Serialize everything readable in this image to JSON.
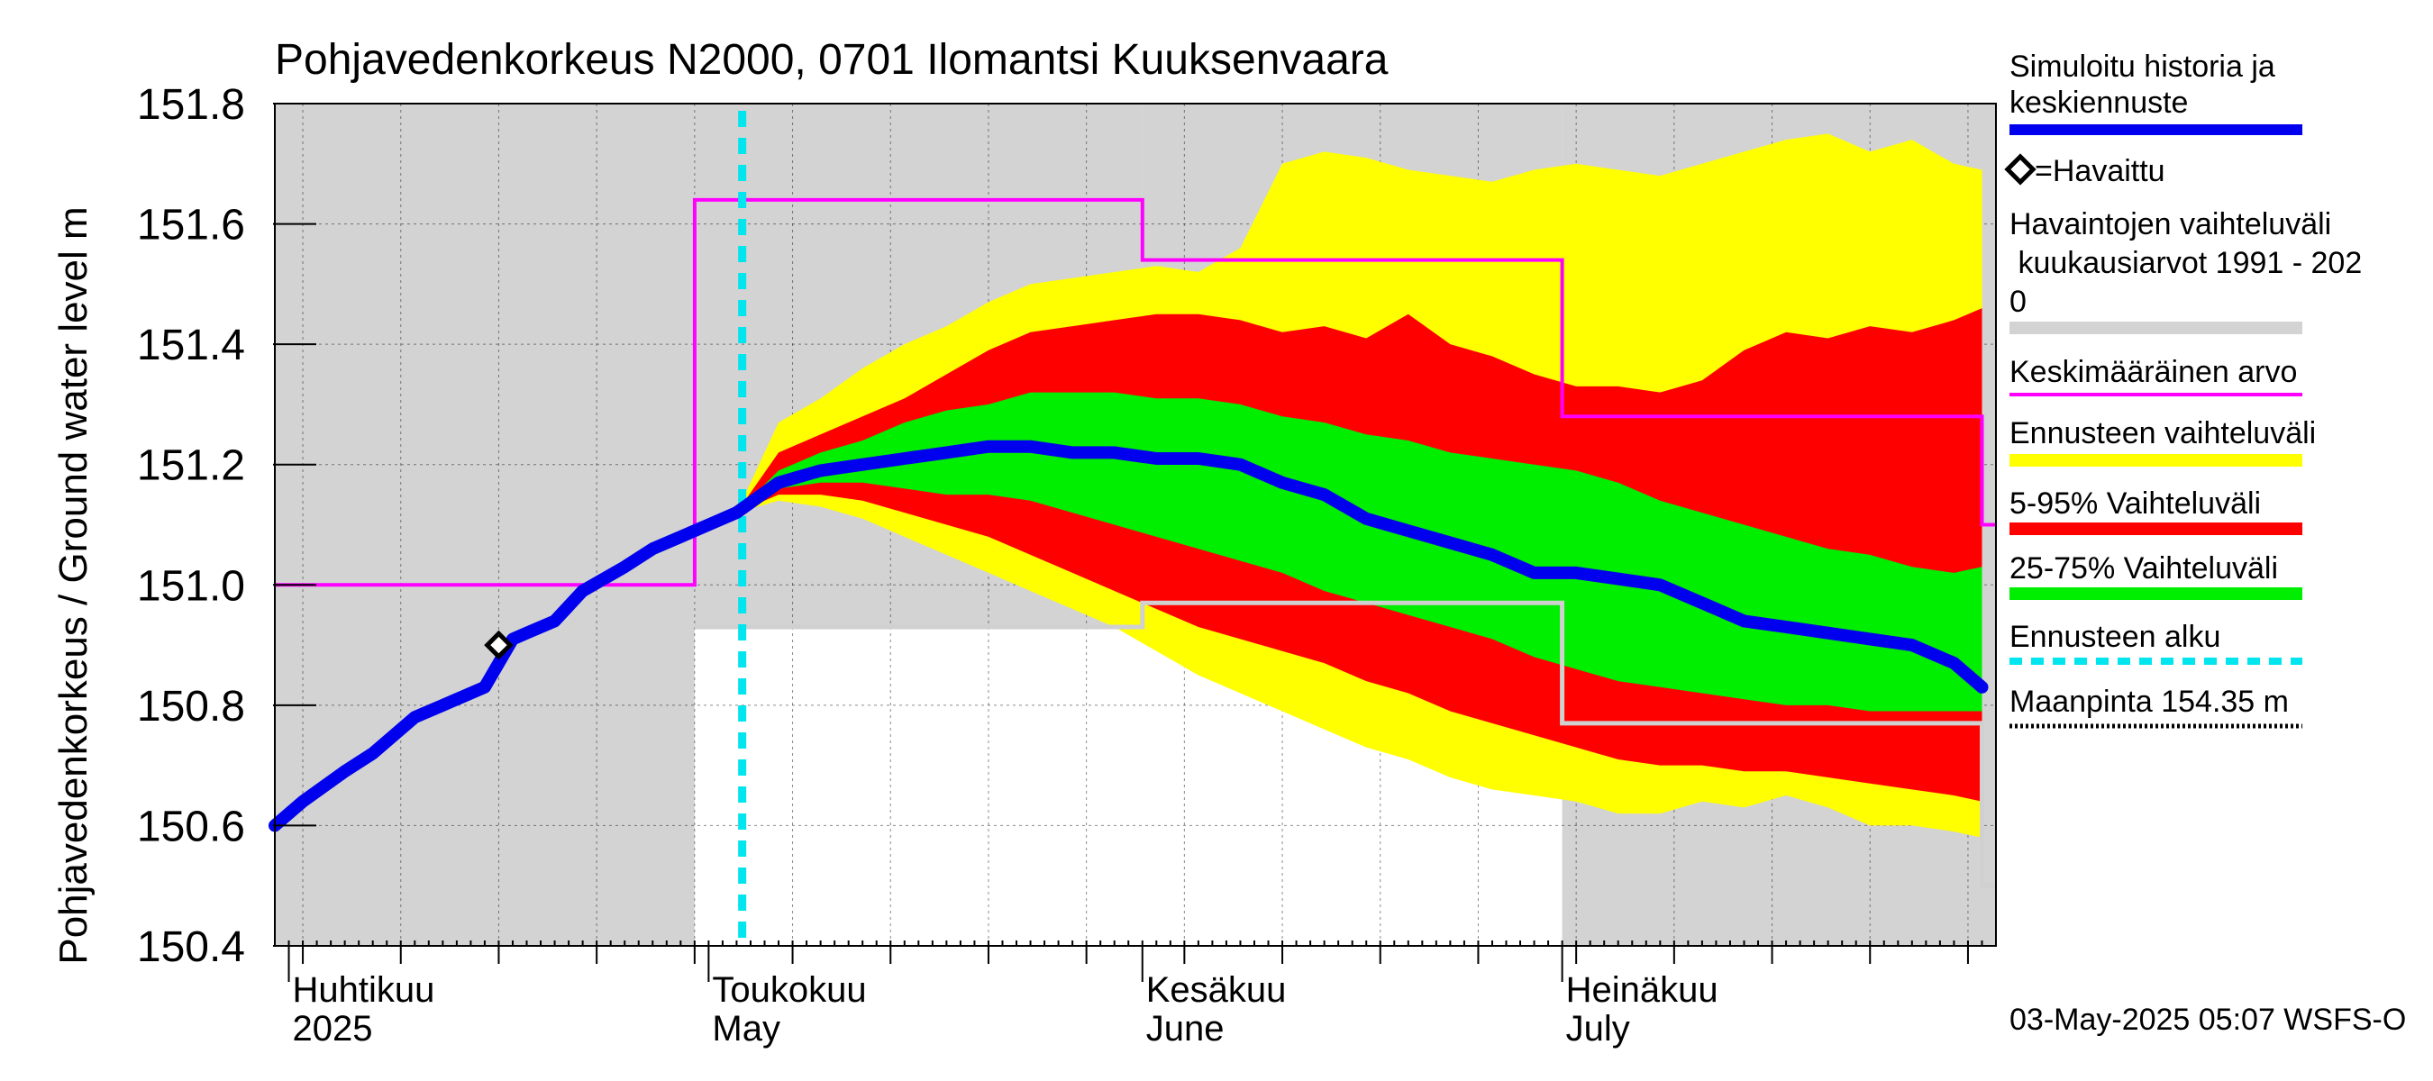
{
  "chart_data": {
    "type": "area",
    "title": "Pohjavedenkorkeus N2000, 0701 Ilomantsi Kuuksenvaara",
    "ylabel": "Pohjavedenkorkeus / Ground water level   m",
    "ylim": [
      150.4,
      151.8
    ],
    "y_ticks": [
      {
        "value": 150.4,
        "label": "150.4"
      },
      {
        "value": 150.6,
        "label": "150.6"
      },
      {
        "value": 150.8,
        "label": "150.8"
      },
      {
        "value": 151.0,
        "label": "151.0"
      },
      {
        "value": 151.2,
        "label": "151.2"
      },
      {
        "value": 151.4,
        "label": "151.4"
      },
      {
        "value": 151.6,
        "label": "151.6"
      },
      {
        "value": 151.8,
        "label": "151.8"
      }
    ],
    "x_range": [
      "2025-03-31",
      "2025-07-31"
    ],
    "month_labels": [
      {
        "date": "2025-04-01",
        "fi": "Huhtikuu",
        "en": "2025"
      },
      {
        "date": "2025-05-01",
        "fi": "Toukokuu",
        "en": "May"
      },
      {
        "date": "2025-06-01",
        "fi": "Kesäkuu",
        "en": "June"
      },
      {
        "date": "2025-07-01",
        "fi": "Heinäkuu",
        "en": "July"
      }
    ],
    "forecast_start": "2025-05-03",
    "timestamp": "03-May-2025 05:07 WSFS-O",
    "colors": {
      "observed_range": "#d3d3d3",
      "forecast_range": "#ffff00",
      "band_5_95": "#ff0000",
      "band_25_75": "#00ee00",
      "simulated": "#0000ee",
      "mean": "#ff00ff",
      "forecast_start": "#00e5ee",
      "ground_surface": "#000000",
      "observation_marker": "#000000"
    },
    "legend": {
      "simulated": [
        "Simuloitu historia ja",
        "keskiennuste"
      ],
      "observed": "=Havaittu",
      "observed_range": [
        "Havaintojen vaihteluväli",
        " kuukausiarvot 1991 - 202",
        "0"
      ],
      "mean": "Keskimääräinen arvo",
      "forecast_range": "Ennusteen vaihteluväli",
      "band_5_95": "5-95% Vaihteluväli",
      "band_25_75": "25-75% Vaihteluväli",
      "forecast_start": "Ennusteen alku",
      "ground_surface": "Maanpinta 154.35 m"
    },
    "observed_range_monthly": [
      {
        "from": "2025-03-31",
        "to": "2025-04-29",
        "low": 150.4,
        "high": 151.8
      },
      {
        "from": "2025-04-30",
        "to": "2025-05-31",
        "low": 150.93,
        "high": 151.8
      },
      {
        "from": "2025-06-01",
        "to": "2025-06-30",
        "low": 150.96,
        "high": 151.8
      },
      {
        "from": "2025-07-01",
        "to": "2025-07-31",
        "low": 150.4,
        "high": 151.8
      }
    ],
    "mean_steps": [
      {
        "from": "2025-03-31",
        "to": "2025-04-29",
        "value": 151.0
      },
      {
        "from": "2025-04-30",
        "to": "2025-05-31",
        "value": 151.64
      },
      {
        "from": "2025-06-01",
        "to": "2025-06-30",
        "value": 151.54
      },
      {
        "from": "2025-07-01",
        "to": "2025-07-30",
        "value": 151.28
      },
      {
        "from": "2025-07-31",
        "to": "2025-07-31",
        "value": 151.1
      }
    ],
    "low_steps": [
      {
        "from": "2025-04-30",
        "to": "2025-05-31",
        "value": 150.93
      },
      {
        "from": "2025-06-01",
        "to": "2025-06-30",
        "value": 150.97
      },
      {
        "from": "2025-07-01",
        "to": "2025-07-30",
        "value": 150.77
      },
      {
        "from": "2025-07-31",
        "to": "2025-07-31",
        "value": 150.5
      }
    ],
    "simulated": {
      "dates": [
        "2025-03-31",
        "2025-04-02",
        "2025-04-05",
        "2025-04-07",
        "2025-04-10",
        "2025-04-12",
        "2025-04-15",
        "2025-04-17",
        "2025-04-18",
        "2025-04-20",
        "2025-04-22",
        "2025-04-25",
        "2025-04-27",
        "2025-04-29",
        "2025-05-01",
        "2025-05-03"
      ],
      "values": [
        150.6,
        150.64,
        150.69,
        150.72,
        150.78,
        150.8,
        150.83,
        150.91,
        150.92,
        150.94,
        150.99,
        151.03,
        151.06,
        151.08,
        151.1,
        151.12
      ]
    },
    "observations": [
      {
        "date": "2025-04-16",
        "value": 150.9
      }
    ],
    "forecast": {
      "dates": [
        "2025-05-03",
        "2025-05-06",
        "2025-05-09",
        "2025-05-12",
        "2025-05-15",
        "2025-05-18",
        "2025-05-21",
        "2025-05-24",
        "2025-05-27",
        "2025-05-30",
        "2025-06-02",
        "2025-06-05",
        "2025-06-08",
        "2025-06-11",
        "2025-06-14",
        "2025-06-17",
        "2025-06-20",
        "2025-06-23",
        "2025-06-26",
        "2025-06-29",
        "2025-07-02",
        "2025-07-05",
        "2025-07-08",
        "2025-07-11",
        "2025-07-14",
        "2025-07-17",
        "2025-07-20",
        "2025-07-23",
        "2025-07-26",
        "2025-07-29",
        "2025-07-31"
      ],
      "median": [
        151.12,
        151.17,
        151.19,
        151.2,
        151.21,
        151.22,
        151.23,
        151.23,
        151.22,
        151.22,
        151.21,
        151.21,
        151.2,
        151.17,
        151.15,
        151.11,
        151.09,
        151.07,
        151.05,
        151.02,
        151.02,
        151.01,
        151.0,
        150.97,
        150.94,
        150.93,
        150.92,
        150.91,
        150.9,
        150.87,
        150.83
      ],
      "p25": [
        151.12,
        151.16,
        151.17,
        151.17,
        151.16,
        151.15,
        151.15,
        151.14,
        151.12,
        151.1,
        151.08,
        151.06,
        151.04,
        151.02,
        150.99,
        150.97,
        150.95,
        150.93,
        150.91,
        150.88,
        150.86,
        150.84,
        150.83,
        150.82,
        150.81,
        150.8,
        150.8,
        150.79,
        150.79,
        150.79,
        150.79
      ],
      "p75": [
        151.12,
        151.19,
        151.22,
        151.24,
        151.27,
        151.29,
        151.3,
        151.32,
        151.32,
        151.32,
        151.31,
        151.31,
        151.3,
        151.28,
        151.27,
        151.25,
        151.24,
        151.22,
        151.21,
        151.2,
        151.19,
        151.17,
        151.14,
        151.12,
        151.1,
        151.08,
        151.06,
        151.05,
        151.03,
        151.02,
        151.03
      ],
      "p5": [
        151.12,
        151.15,
        151.15,
        151.14,
        151.12,
        151.1,
        151.08,
        151.05,
        151.02,
        150.99,
        150.96,
        150.93,
        150.91,
        150.89,
        150.87,
        150.84,
        150.82,
        150.79,
        150.77,
        150.75,
        150.73,
        150.71,
        150.7,
        150.7,
        150.69,
        150.69,
        150.68,
        150.67,
        150.66,
        150.65,
        150.64
      ],
      "p95": [
        151.12,
        151.22,
        151.25,
        151.28,
        151.31,
        151.35,
        151.39,
        151.42,
        151.43,
        151.44,
        151.45,
        151.45,
        151.44,
        151.42,
        151.43,
        151.41,
        151.45,
        151.4,
        151.38,
        151.35,
        151.33,
        151.33,
        151.32,
        151.34,
        151.39,
        151.42,
        151.41,
        151.43,
        151.42,
        151.44,
        151.46
      ],
      "min": [
        151.12,
        151.14,
        151.13,
        151.11,
        151.08,
        151.05,
        151.02,
        150.99,
        150.96,
        150.93,
        150.89,
        150.85,
        150.82,
        150.79,
        150.76,
        150.73,
        150.71,
        150.68,
        150.66,
        150.65,
        150.64,
        150.62,
        150.62,
        150.64,
        150.63,
        150.65,
        150.63,
        150.6,
        150.6,
        150.59,
        150.58
      ],
      "max": [
        151.12,
        151.27,
        151.31,
        151.36,
        151.4,
        151.43,
        151.47,
        151.5,
        151.51,
        151.52,
        151.53,
        151.52,
        151.56,
        151.7,
        151.72,
        151.71,
        151.69,
        151.68,
        151.67,
        151.69,
        151.7,
        151.69,
        151.68,
        151.7,
        151.72,
        151.74,
        151.75,
        151.72,
        151.74,
        151.7,
        151.69
      ]
    }
  }
}
